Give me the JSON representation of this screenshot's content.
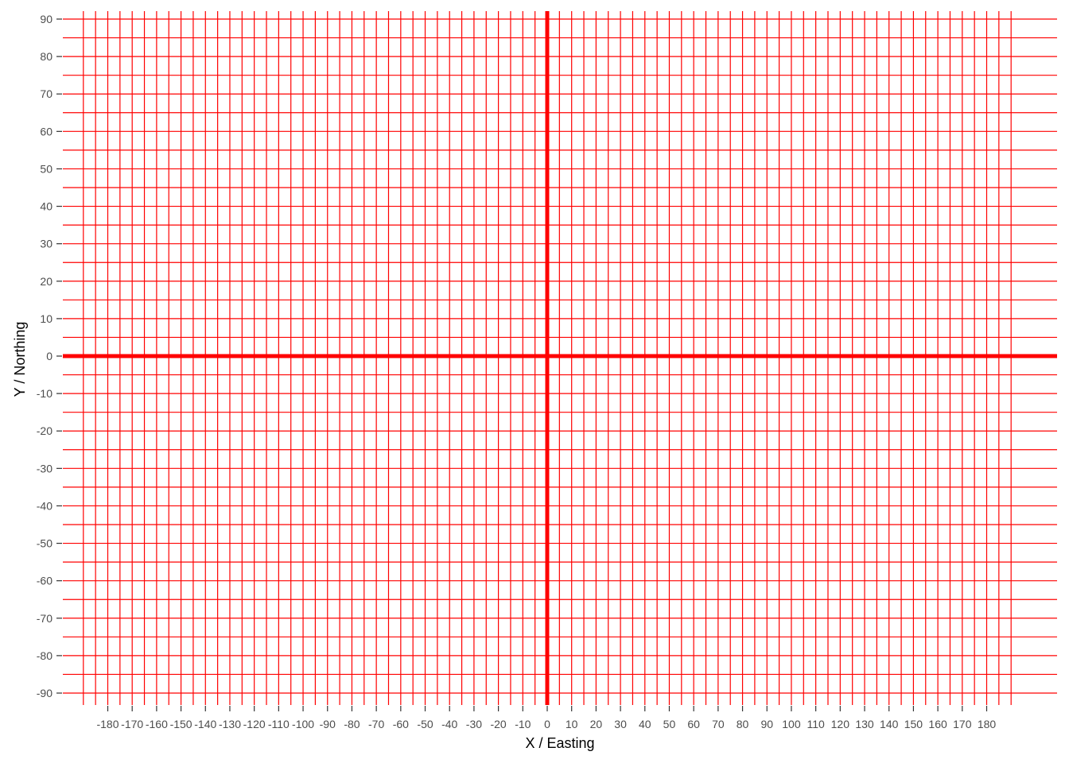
{
  "chart_data": {
    "type": "line",
    "title": "",
    "xlabel": "X / Easting",
    "ylabel": "Y / Northing",
    "xlim": [
      -190,
      190
    ],
    "ylim": [
      -90,
      90
    ],
    "x_ticks": [
      -180,
      -170,
      -160,
      -150,
      -140,
      -130,
      -120,
      -110,
      -100,
      -90,
      -80,
      -70,
      -60,
      -50,
      -40,
      -30,
      -20,
      -10,
      0,
      10,
      20,
      30,
      40,
      50,
      60,
      70,
      80,
      90,
      100,
      110,
      120,
      130,
      140,
      150,
      160,
      170,
      180
    ],
    "y_ticks": [
      90,
      80,
      70,
      60,
      50,
      40,
      30,
      20,
      10,
      0,
      -10,
      -20,
      -30,
      -40,
      -50,
      -60,
      -70,
      -80,
      -90
    ],
    "grid": true,
    "grid_spacing": 5,
    "grid_color": "#ff0000",
    "axis_lines": [
      {
        "orientation": "horizontal",
        "y": 0,
        "color": "#ff0000"
      },
      {
        "orientation": "vertical",
        "x": 0,
        "color": "#ff0000"
      }
    ]
  }
}
